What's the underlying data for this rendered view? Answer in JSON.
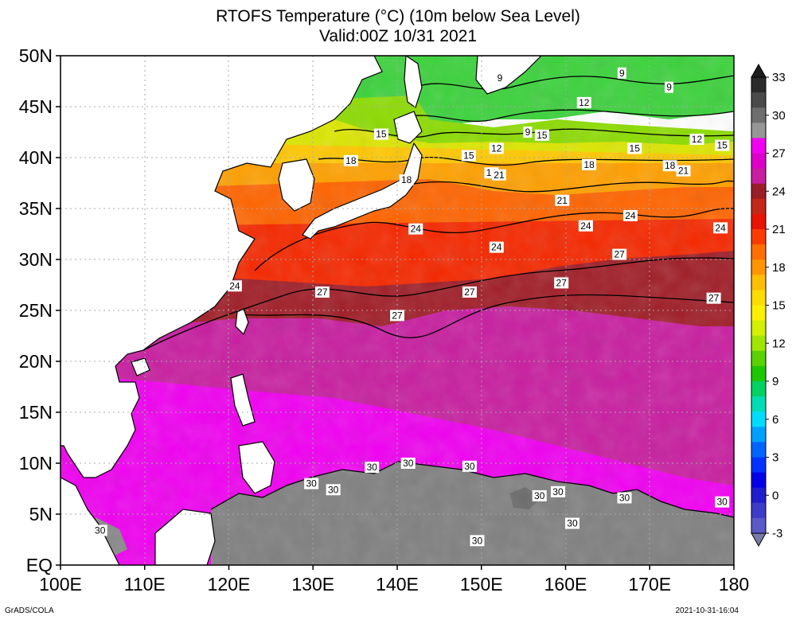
{
  "title": "RTOFS Temperature (°C) (10m below Sea Level)",
  "subtitle": "Valid:00Z 10/31 2021",
  "footer_left": "GrADS/COLA",
  "footer_right": "2021-10-31-16:04",
  "map": {
    "lon_range": [
      100,
      180
    ],
    "lat_range": [
      0,
      50
    ],
    "lon_ticks": [
      {
        "v": 100,
        "label": "100E"
      },
      {
        "v": 110,
        "label": "110E"
      },
      {
        "v": 120,
        "label": "120E"
      },
      {
        "v": 130,
        "label": "130E"
      },
      {
        "v": 140,
        "label": "140E"
      },
      {
        "v": 150,
        "label": "150E"
      },
      {
        "v": 160,
        "label": "160E"
      },
      {
        "v": 170,
        "label": "170E"
      },
      {
        "v": 180,
        "label": "180"
      }
    ],
    "lat_ticks": [
      {
        "v": 0,
        "label": "EQ"
      },
      {
        "v": 5,
        "label": "5N"
      },
      {
        "v": 10,
        "label": "10N"
      },
      {
        "v": 15,
        "label": "15N"
      },
      {
        "v": 20,
        "label": "20N"
      },
      {
        "v": 25,
        "label": "25N"
      },
      {
        "v": 30,
        "label": "30N"
      },
      {
        "v": 35,
        "label": "35N"
      },
      {
        "v": 40,
        "label": "40N"
      },
      {
        "v": 45,
        "label": "45N"
      },
      {
        "v": 50,
        "label": "50N"
      }
    ],
    "grid": true,
    "contour_labels": [
      {
        "text": "9",
        "lon": 152.2,
        "lat": 47.8
      },
      {
        "text": "9",
        "lon": 166.7,
        "lat": 48.3
      },
      {
        "text": "9",
        "lon": 172.3,
        "lat": 46.9
      },
      {
        "text": "9",
        "lon": 155.5,
        "lat": 42.5
      },
      {
        "text": "12",
        "lon": 162.2,
        "lat": 45.4
      },
      {
        "text": "12",
        "lon": 151.8,
        "lat": 40.9
      },
      {
        "text": "12",
        "lon": 175.6,
        "lat": 41.8
      },
      {
        "text": "15",
        "lon": 138.1,
        "lat": 42.3
      },
      {
        "text": "15",
        "lon": 157.2,
        "lat": 42.2
      },
      {
        "text": "15",
        "lon": 148.5,
        "lat": 40.2
      },
      {
        "text": "15",
        "lon": 168.2,
        "lat": 40.9
      },
      {
        "text": "15",
        "lon": 178.6,
        "lat": 41.2
      },
      {
        "text": "18",
        "lon": 134.5,
        "lat": 39.7
      },
      {
        "text": "18",
        "lon": 141.1,
        "lat": 37.8
      },
      {
        "text": "18",
        "lon": 151.2,
        "lat": 38.5
      },
      {
        "text": "18",
        "lon": 162.8,
        "lat": 39.3
      },
      {
        "text": "18",
        "lon": 172.4,
        "lat": 39.2
      },
      {
        "text": "21",
        "lon": 152.1,
        "lat": 38.3
      },
      {
        "text": "21",
        "lon": 159.6,
        "lat": 35.8
      },
      {
        "text": "21",
        "lon": 174.0,
        "lat": 38.7
      },
      {
        "text": "24",
        "lon": 142.2,
        "lat": 33.0
      },
      {
        "text": "24",
        "lon": 151.8,
        "lat": 31.2
      },
      {
        "text": "24",
        "lon": 162.4,
        "lat": 33.3
      },
      {
        "text": "24",
        "lon": 167.7,
        "lat": 34.3
      },
      {
        "text": "24",
        "lon": 178.4,
        "lat": 33.1
      },
      {
        "text": "24",
        "lon": 120.7,
        "lat": 27.4
      },
      {
        "text": "27",
        "lon": 131.1,
        "lat": 26.8
      },
      {
        "text": "27",
        "lon": 148.6,
        "lat": 26.8
      },
      {
        "text": "27",
        "lon": 159.5,
        "lat": 27.7
      },
      {
        "text": "27",
        "lon": 166.4,
        "lat": 30.5
      },
      {
        "text": "27",
        "lon": 177.6,
        "lat": 26.2
      },
      {
        "text": "27",
        "lon": 140.0,
        "lat": 24.5
      },
      {
        "text": "30",
        "lon": 137.0,
        "lat": 9.6
      },
      {
        "text": "30",
        "lon": 141.3,
        "lat": 10.0
      },
      {
        "text": "30",
        "lon": 148.6,
        "lat": 9.7
      },
      {
        "text": "30",
        "lon": 129.8,
        "lat": 8.0
      },
      {
        "text": "30",
        "lon": 132.4,
        "lat": 7.4
      },
      {
        "text": "30",
        "lon": 156.9,
        "lat": 6.8
      },
      {
        "text": "30",
        "lon": 159.1,
        "lat": 7.2
      },
      {
        "text": "30",
        "lon": 167.0,
        "lat": 6.6
      },
      {
        "text": "30",
        "lon": 160.8,
        "lat": 4.1
      },
      {
        "text": "30",
        "lon": 178.6,
        "lat": 6.2
      },
      {
        "text": "30",
        "lon": 104.7,
        "lat": 3.4
      },
      {
        "text": "30",
        "lon": 149.5,
        "lat": 2.4
      }
    ]
  },
  "colorbar": {
    "labels": [
      "33",
      "30",
      "27",
      "24",
      "21",
      "18",
      "15",
      "12",
      "9",
      "6",
      "3",
      "0",
      "-3"
    ],
    "colors": [
      "#2a2a2a",
      "#4a4a4a",
      "#6e6e6e",
      "#969696",
      "#f000f0",
      "#dc00c8",
      "#c81ea0",
      "#9a1e28",
      "#c42818",
      "#e61400",
      "#fa3c00",
      "#ff6e00",
      "#ff9600",
      "#ffbe00",
      "#ffdc00",
      "#faf000",
      "#d2f000",
      "#a0e600",
      "#5ad200",
      "#1ec800",
      "#00d264",
      "#00dcb4",
      "#00dcff",
      "#00a0ff",
      "#0064ff",
      "#0032ff",
      "#0000e6",
      "#1e1ecc",
      "#3c3cc8",
      "#5a5ac8"
    ]
  }
}
